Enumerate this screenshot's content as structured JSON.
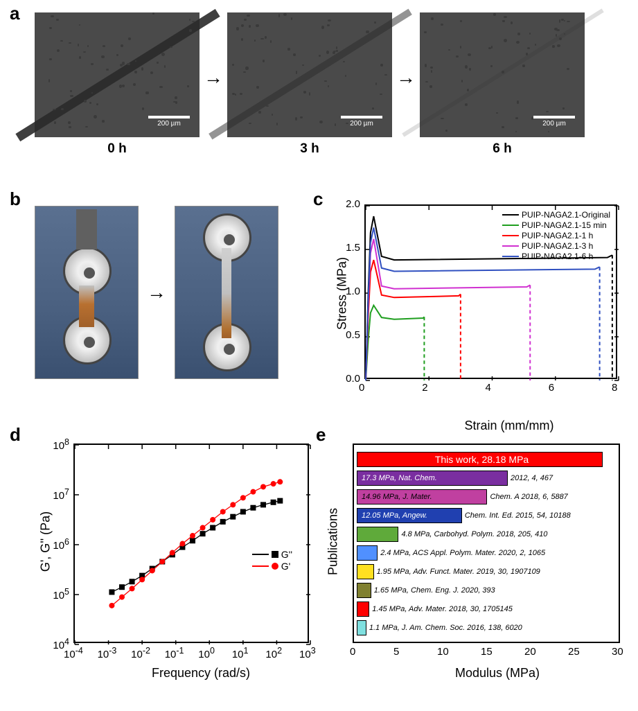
{
  "panel_a": {
    "label": "a",
    "images": [
      {
        "time": "0 h",
        "scale": "200 µm",
        "scratch_opacity": 0.9
      },
      {
        "time": "3 h",
        "scale": "200 µm",
        "scratch_opacity": 0.5
      },
      {
        "time": "6 h",
        "scale": "200 µm",
        "scratch_opacity": 0.15
      }
    ],
    "bg_color": "#4a4a4a"
  },
  "panel_b": {
    "label": "b"
  },
  "panel_c": {
    "label": "c",
    "type": "line",
    "xlabel": "Strain (mm/mm)",
    "ylabel": "Stress (MPa)",
    "xlim": [
      0,
      8
    ],
    "xtick_step": 2,
    "ylim": [
      0.0,
      2.0
    ],
    "ytick_step": 0.5,
    "label_fontsize": 18,
    "tick_fontsize": 15,
    "series": [
      {
        "name": "PUIP-NAGA2.1-Original",
        "color": "#000000",
        "x_break": 7.8,
        "y_peak": 1.88,
        "y_plateau": 1.38
      },
      {
        "name": "PUIP-NAGA2.1-15 min",
        "color": "#1f9e1f",
        "x_break": 1.85,
        "y_peak": 0.86,
        "y_plateau": 0.7
      },
      {
        "name": "PUIP-NAGA2.1-1 h",
        "color": "#ff0000",
        "x_break": 3.0,
        "y_peak": 1.38,
        "y_plateau": 0.95
      },
      {
        "name": "PUIP-NAGA2.1-3 h",
        "color": "#d030d0",
        "x_break": 5.2,
        "y_peak": 1.62,
        "y_plateau": 1.05
      },
      {
        "name": "PUIP-NAGA2.1-6 h",
        "color": "#3050c0",
        "x_break": 7.4,
        "y_peak": 1.75,
        "y_plateau": 1.25
      }
    ]
  },
  "panel_d": {
    "label": "d",
    "type": "scatter-loglog",
    "xlabel": "Frequency (rad/s)",
    "ylabel": "G', G'' (Pa)",
    "xlim_exp": [
      -4,
      3
    ],
    "ylim_exp": [
      4,
      8
    ],
    "series": [
      {
        "name": "G''",
        "color": "#000000",
        "marker": "square",
        "points_logx": [
          -2.9,
          -2.6,
          -2.3,
          -2.0,
          -1.7,
          -1.4,
          -1.1,
          -0.8,
          -0.5,
          -0.2,
          0.1,
          0.4,
          0.7,
          1.0,
          1.3,
          1.6,
          1.9,
          2.1
        ],
        "points_logy": [
          5.05,
          5.15,
          5.26,
          5.38,
          5.52,
          5.66,
          5.8,
          5.95,
          6.08,
          6.22,
          6.34,
          6.46,
          6.56,
          6.66,
          6.74,
          6.8,
          6.85,
          6.88
        ]
      },
      {
        "name": "G'",
        "color": "#ff0000",
        "marker": "circle",
        "points_logx": [
          -2.9,
          -2.6,
          -2.3,
          -2.0,
          -1.7,
          -1.4,
          -1.1,
          -0.8,
          -0.5,
          -0.2,
          0.1,
          0.4,
          0.7,
          1.0,
          1.3,
          1.6,
          1.9,
          2.1
        ],
        "points_logy": [
          4.78,
          4.95,
          5.12,
          5.3,
          5.48,
          5.66,
          5.84,
          6.02,
          6.18,
          6.34,
          6.5,
          6.66,
          6.8,
          6.94,
          7.06,
          7.16,
          7.22,
          7.26
        ]
      }
    ]
  },
  "panel_e": {
    "label": "e",
    "type": "hbar",
    "xlabel": "Modulus (MPa)",
    "ylabel": "Publications",
    "xlim": [
      0,
      30
    ],
    "xtick_step": 5,
    "bars": [
      {
        "value": 28.18,
        "label_in": "This work, 28.18 MPa",
        "label_out": "",
        "color": "#ff0000",
        "text_color": "#ffffff"
      },
      {
        "value": 17.3,
        "label_in": "17.3 MPa, Nat. Chem.",
        "label_out": " 2012, 4, 467",
        "color": "#7a2ea0",
        "text_color": "#ffffff"
      },
      {
        "value": 14.96,
        "label_in": "14.96 MPa, J. Mater.",
        "label_out": " Chem. A 2018, 6, 5887",
        "color": "#c040a0",
        "text_color": "#000000"
      },
      {
        "value": 12.05,
        "label_in": "12.05 MPa, Angew.",
        "label_out": " Chem. Int. Ed. 2015, 54, 10188",
        "color": "#2040b0",
        "text_color": "#ffffff"
      },
      {
        "value": 4.8,
        "label_in": "",
        "label_out": "4.8 MPa, Carbohyd. Polym. 2018, 205, 410",
        "color": "#5faa3a",
        "text_color": "#000000"
      },
      {
        "value": 2.4,
        "label_in": "",
        "label_out": "2.4 MPa, ACS Appl. Polym. Mater. 2020, 2, 1065",
        "color": "#5090ff",
        "text_color": "#000000"
      },
      {
        "value": 1.95,
        "label_in": "",
        "label_out": "1.95 MPa, Adv. Funct. Mater. 2019, 30, 1907109",
        "color": "#ffe020",
        "text_color": "#000000"
      },
      {
        "value": 1.65,
        "label_in": "",
        "label_out": "1.65 MPa, Chem. Eng. J. 2020, 393",
        "color": "#808030",
        "text_color": "#000000"
      },
      {
        "value": 1.45,
        "label_in": "",
        "label_out": "1.45 MPa, Adv. Mater. 2018, 30, 1705145",
        "color": "#ff0000",
        "text_color": "#000000"
      },
      {
        "value": 1.1,
        "label_in": "",
        "label_out": "1.1 MPa, J. Am. Chem. Soc. 2016, 138, 6020",
        "color": "#80e0e0",
        "text_color": "#000000"
      }
    ]
  }
}
